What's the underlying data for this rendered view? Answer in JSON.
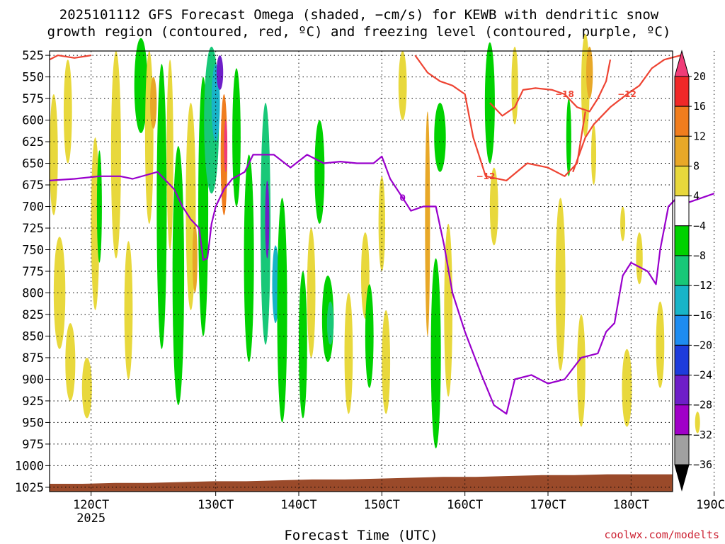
{
  "title_line1": "2025101112 GFS Forecast Omega (shaded, −cm/s) for KEWB with dendritic snow",
  "title_line2": "growth region (contoured, red, ºC) and freezing level (contoured, purple, ºC)",
  "xlabel": "Forecast Time (UTC)",
  "credit": "coolwx.com/modelts",
  "colors": {
    "ground": "#9a4a2a",
    "snow_contour": "#ee4433",
    "freezing_contour": "#9900cc",
    "credit": "#cc2233"
  },
  "chart_data": {
    "type": "heatmap",
    "y_axis": {
      "label": "",
      "unit": "hPa",
      "inverted": true,
      "ticks": [
        525,
        550,
        575,
        600,
        625,
        650,
        675,
        700,
        725,
        750,
        775,
        800,
        825,
        850,
        875,
        900,
        925,
        950,
        975,
        1000,
        1025
      ]
    },
    "x_axis": {
      "ticks": [
        {
          "day": 11.5,
          "label": "120CT",
          "sublabel": "2025"
        },
        {
          "day": 13.0,
          "label": "130CT",
          "sublabel": ""
        },
        {
          "day": 14.0,
          "label": "140CT",
          "sublabel": ""
        },
        {
          "day": 15.0,
          "label": "150CT",
          "sublabel": ""
        },
        {
          "day": 16.0,
          "label": "160CT",
          "sublabel": ""
        },
        {
          "day": 17.0,
          "label": "170CT",
          "sublabel": ""
        },
        {
          "day": 18.0,
          "label": "180CT",
          "sublabel": ""
        },
        {
          "day": 19.0,
          "label": "190CT",
          "sublabel": ""
        }
      ],
      "range": [
        11.0,
        18.5
      ]
    },
    "grid": true,
    "colorbar": {
      "labels": [
        "20",
        "16",
        "12",
        "8",
        "4",
        "−4",
        "−8",
        "−12",
        "−16",
        "−20",
        "−24",
        "−28",
        "−32",
        "−36"
      ],
      "colors": [
        "#f03c78",
        "#f02828",
        "#f07d1e",
        "#e8a828",
        "#e8d83c",
        "#ffffff",
        "#00d200",
        "#18c878",
        "#18b4c8",
        "#1e8cf0",
        "#1e3cdc",
        "#6e1ec8",
        "#a000c8",
        "#a0a0a0",
        "#000000"
      ]
    },
    "ground_surface_hpa": [
      1021,
      1021,
      1020,
      1020,
      1019,
      1018,
      1018,
      1017,
      1016,
      1016,
      1015,
      1014,
      1013,
      1013,
      1012,
      1011,
      1011,
      1010,
      1010,
      1010
    ],
    "omega_regions": [
      {
        "t": 11.05,
        "p": 640,
        "w": 0.05,
        "h": 140,
        "v": 4
      },
      {
        "t": 11.12,
        "p": 800,
        "w": 0.07,
        "h": 130,
        "v": 4
      },
      {
        "t": 11.22,
        "p": 590,
        "w": 0.05,
        "h": 120,
        "v": 4
      },
      {
        "t": 11.25,
        "p": 880,
        "w": 0.06,
        "h": 90,
        "v": 4
      },
      {
        "t": 11.45,
        "p": 910,
        "w": 0.06,
        "h": 70,
        "v": 4
      },
      {
        "t": 11.55,
        "p": 720,
        "w": 0.05,
        "h": 200,
        "v": 4
      },
      {
        "t": 11.6,
        "p": 700,
        "w": 0.03,
        "h": 130,
        "v": -6
      },
      {
        "t": 11.8,
        "p": 640,
        "w": 0.06,
        "h": 240,
        "v": 4
      },
      {
        "t": 11.95,
        "p": 820,
        "w": 0.05,
        "h": 160,
        "v": 4
      },
      {
        "t": 12.1,
        "p": 560,
        "w": 0.08,
        "h": 110,
        "v": -6
      },
      {
        "t": 12.2,
        "p": 620,
        "w": 0.05,
        "h": 200,
        "v": 4
      },
      {
        "t": 12.25,
        "p": 580,
        "w": 0.04,
        "h": 60,
        "v": 8
      },
      {
        "t": 12.35,
        "p": 700,
        "w": 0.06,
        "h": 330,
        "v": -6
      },
      {
        "t": 12.45,
        "p": 640,
        "w": 0.04,
        "h": 220,
        "v": 4
      },
      {
        "t": 12.55,
        "p": 780,
        "w": 0.07,
        "h": 300,
        "v": -6
      },
      {
        "t": 12.7,
        "p": 700,
        "w": 0.06,
        "h": 240,
        "v": 4
      },
      {
        "t": 12.75,
        "p": 760,
        "w": 0.03,
        "h": 80,
        "v": 8
      },
      {
        "t": 12.85,
        "p": 700,
        "w": 0.06,
        "h": 300,
        "v": -6
      },
      {
        "t": 12.95,
        "p": 600,
        "w": 0.09,
        "h": 170,
        "v": -10
      },
      {
        "t": 13.0,
        "p": 580,
        "w": 0.05,
        "h": 90,
        "v": -14
      },
      {
        "t": 13.05,
        "p": 545,
        "w": 0.04,
        "h": 40,
        "v": -26
      },
      {
        "t": 13.1,
        "p": 640,
        "w": 0.04,
        "h": 140,
        "v": 12
      },
      {
        "t": 13.12,
        "p": 630,
        "w": 0.02,
        "h": 60,
        "v": 20
      },
      {
        "t": 13.25,
        "p": 620,
        "w": 0.05,
        "h": 160,
        "v": -6
      },
      {
        "t": 13.4,
        "p": 760,
        "w": 0.06,
        "h": 240,
        "v": -6
      },
      {
        "t": 13.6,
        "p": 720,
        "w": 0.06,
        "h": 280,
        "v": -10
      },
      {
        "t": 13.62,
        "p": 715,
        "w": 0.025,
        "h": 90,
        "v": -24
      },
      {
        "t": 13.72,
        "p": 790,
        "w": 0.04,
        "h": 90,
        "v": -14
      },
      {
        "t": 13.8,
        "p": 820,
        "w": 0.06,
        "h": 260,
        "v": -6
      },
      {
        "t": 14.05,
        "p": 860,
        "w": 0.05,
        "h": 170,
        "v": -6
      },
      {
        "t": 14.15,
        "p": 800,
        "w": 0.05,
        "h": 150,
        "v": 4
      },
      {
        "t": 14.25,
        "p": 660,
        "w": 0.06,
        "h": 120,
        "v": -6
      },
      {
        "t": 14.35,
        "p": 830,
        "w": 0.07,
        "h": 100,
        "v": -6
      },
      {
        "t": 14.38,
        "p": 835,
        "w": 0.04,
        "h": 50,
        "v": -10
      },
      {
        "t": 14.6,
        "p": 870,
        "w": 0.05,
        "h": 140,
        "v": 4
      },
      {
        "t": 14.8,
        "p": 780,
        "w": 0.05,
        "h": 100,
        "v": 4
      },
      {
        "t": 14.85,
        "p": 850,
        "w": 0.05,
        "h": 120,
        "v": -6
      },
      {
        "t": 15.0,
        "p": 720,
        "w": 0.04,
        "h": 110,
        "v": 4
      },
      {
        "t": 15.05,
        "p": 880,
        "w": 0.05,
        "h": 120,
        "v": 4
      },
      {
        "t": 15.25,
        "p": 560,
        "w": 0.05,
        "h": 80,
        "v": 4
      },
      {
        "t": 15.55,
        "p": 720,
        "w": 0.03,
        "h": 260,
        "v": 8
      },
      {
        "t": 15.65,
        "p": 870,
        "w": 0.06,
        "h": 220,
        "v": -6
      },
      {
        "t": 15.7,
        "p": 620,
        "w": 0.07,
        "h": 80,
        "v": -6
      },
      {
        "t": 15.8,
        "p": 820,
        "w": 0.05,
        "h": 200,
        "v": 4
      },
      {
        "t": 16.3,
        "p": 580,
        "w": 0.06,
        "h": 140,
        "v": -6
      },
      {
        "t": 16.35,
        "p": 700,
        "w": 0.05,
        "h": 90,
        "v": 4
      },
      {
        "t": 16.6,
        "p": 560,
        "w": 0.04,
        "h": 90,
        "v": 4
      },
      {
        "t": 17.15,
        "p": 790,
        "w": 0.06,
        "h": 200,
        "v": 4
      },
      {
        "t": 17.25,
        "p": 620,
        "w": 0.03,
        "h": 90,
        "v": -6
      },
      {
        "t": 17.4,
        "p": 890,
        "w": 0.05,
        "h": 130,
        "v": 4
      },
      {
        "t": 17.45,
        "p": 560,
        "w": 0.05,
        "h": 120,
        "v": 4
      },
      {
        "t": 17.5,
        "p": 545,
        "w": 0.04,
        "h": 60,
        "v": 8
      },
      {
        "t": 17.55,
        "p": 640,
        "w": 0.03,
        "h": 70,
        "v": 4
      },
      {
        "t": 17.9,
        "p": 720,
        "w": 0.03,
        "h": 40,
        "v": 4
      },
      {
        "t": 17.95,
        "p": 910,
        "w": 0.06,
        "h": 90,
        "v": 4
      },
      {
        "t": 18.1,
        "p": 760,
        "w": 0.04,
        "h": 60,
        "v": 4
      },
      {
        "t": 18.35,
        "p": 860,
        "w": 0.05,
        "h": 100,
        "v": 4
      },
      {
        "t": 18.8,
        "p": 950,
        "w": 0.03,
        "h": 25,
        "v": 4
      }
    ],
    "contours": [
      {
        "name": "snow_upper_left",
        "role": "snow",
        "label": "",
        "points": [
          [
            11.0,
            530
          ],
          [
            11.1,
            525
          ],
          [
            11.3,
            528
          ],
          [
            11.5,
            525
          ]
        ]
      },
      {
        "name": "snow_left_isotherm",
        "role": "snow",
        "label": "−12",
        "points": [
          [
            15.4,
            525
          ],
          [
            15.55,
            545
          ],
          [
            15.7,
            555
          ],
          [
            15.85,
            560
          ],
          [
            16.0,
            570
          ],
          [
            16.1,
            620
          ],
          [
            16.25,
            665
          ],
          [
            16.5,
            670
          ],
          [
            16.75,
            650
          ],
          [
            17.0,
            655
          ],
          [
            17.2,
            665
          ],
          [
            17.35,
            650
          ],
          [
            17.45,
            590
          ]
        ]
      },
      {
        "name": "snow_inner_isotherm",
        "role": "snow",
        "label": "−18",
        "points": [
          [
            16.3,
            580
          ],
          [
            16.45,
            595
          ],
          [
            16.6,
            585
          ],
          [
            16.7,
            565
          ],
          [
            16.85,
            563
          ],
          [
            17.05,
            565
          ],
          [
            17.2,
            570
          ],
          [
            17.35,
            585
          ],
          [
            17.5,
            590
          ],
          [
            17.6,
            575
          ],
          [
            17.7,
            555
          ],
          [
            17.75,
            530
          ]
        ]
      },
      {
        "name": "snow_right_isotherm",
        "role": "snow",
        "label": "−12",
        "points": [
          [
            17.3,
            660
          ],
          [
            17.45,
            620
          ],
          [
            17.55,
            605
          ],
          [
            17.75,
            585
          ],
          [
            17.95,
            570
          ],
          [
            18.1,
            560
          ],
          [
            18.25,
            540
          ],
          [
            18.4,
            530
          ],
          [
            18.6,
            525
          ]
        ]
      },
      {
        "name": "freezing_level",
        "role": "freezing",
        "label": "0",
        "points": [
          [
            11.0,
            670
          ],
          [
            11.3,
            668
          ],
          [
            11.6,
            665
          ],
          [
            11.85,
            665
          ],
          [
            12.0,
            668
          ],
          [
            12.3,
            660
          ],
          [
            12.5,
            680
          ],
          [
            12.6,
            700
          ],
          [
            12.7,
            715
          ],
          [
            12.8,
            725
          ],
          [
            12.85,
            762
          ],
          [
            12.9,
            760
          ],
          [
            12.95,
            720
          ],
          [
            13.0,
            700
          ],
          [
            13.1,
            680
          ],
          [
            13.2,
            668
          ],
          [
            13.35,
            660
          ],
          [
            13.45,
            640
          ],
          [
            13.7,
            640
          ],
          [
            13.9,
            655
          ],
          [
            14.1,
            640
          ],
          [
            14.3,
            650
          ],
          [
            14.5,
            648
          ],
          [
            14.7,
            650
          ],
          [
            14.9,
            650
          ],
          [
            15.0,
            642
          ],
          [
            15.1,
            668
          ],
          [
            15.25,
            690
          ],
          [
            15.35,
            705
          ],
          [
            15.5,
            700
          ],
          [
            15.65,
            700
          ],
          [
            15.75,
            745
          ],
          [
            15.85,
            800
          ],
          [
            16.0,
            845
          ],
          [
            16.2,
            895
          ],
          [
            16.35,
            930
          ],
          [
            16.5,
            940
          ],
          [
            16.6,
            900
          ],
          [
            16.8,
            895
          ],
          [
            17.0,
            905
          ],
          [
            17.2,
            900
          ],
          [
            17.4,
            875
          ],
          [
            17.6,
            870
          ],
          [
            17.7,
            845
          ],
          [
            17.8,
            835
          ],
          [
            17.9,
            780
          ],
          [
            18.0,
            765
          ],
          [
            18.2,
            775
          ],
          [
            18.3,
            790
          ],
          [
            18.35,
            750
          ],
          [
            18.45,
            700
          ],
          [
            18.55,
            690
          ],
          [
            18.7,
            695
          ],
          [
            18.85,
            690
          ],
          [
            19.0,
            685
          ]
        ]
      }
    ]
  }
}
